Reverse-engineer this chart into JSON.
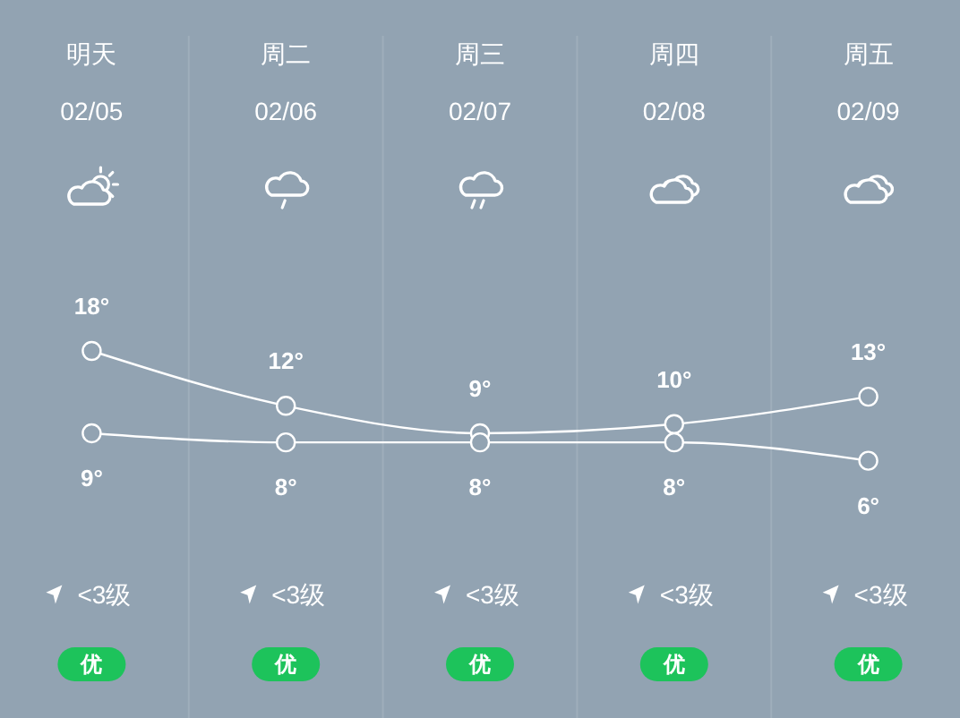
{
  "chart_data": {
    "type": "line",
    "categories": [
      "明天",
      "周二",
      "周三",
      "周四",
      "周五"
    ],
    "series": [
      {
        "color": "#ffffff",
        "values": [
          18,
          12,
          9,
          10,
          13
        ],
        "value_labels": [
          "18°",
          "12°",
          "9°",
          "10°",
          "13°"
        ]
      },
      {
        "color": "#ffffff",
        "values": [
          9,
          8,
          8,
          8,
          6
        ],
        "value_labels": [
          "9°",
          "8°",
          "8°",
          "8°",
          "6°"
        ]
      }
    ],
    "tick_labels": "x",
    "marker": "circle",
    "annotations": [
      "02/05",
      "02/06",
      "02/07",
      "02/08",
      "02/09",
      "<3级",
      "<3级",
      "<3级",
      "<3级",
      "<3级",
      "优",
      "优",
      "优",
      "优",
      "优"
    ]
  }
}
